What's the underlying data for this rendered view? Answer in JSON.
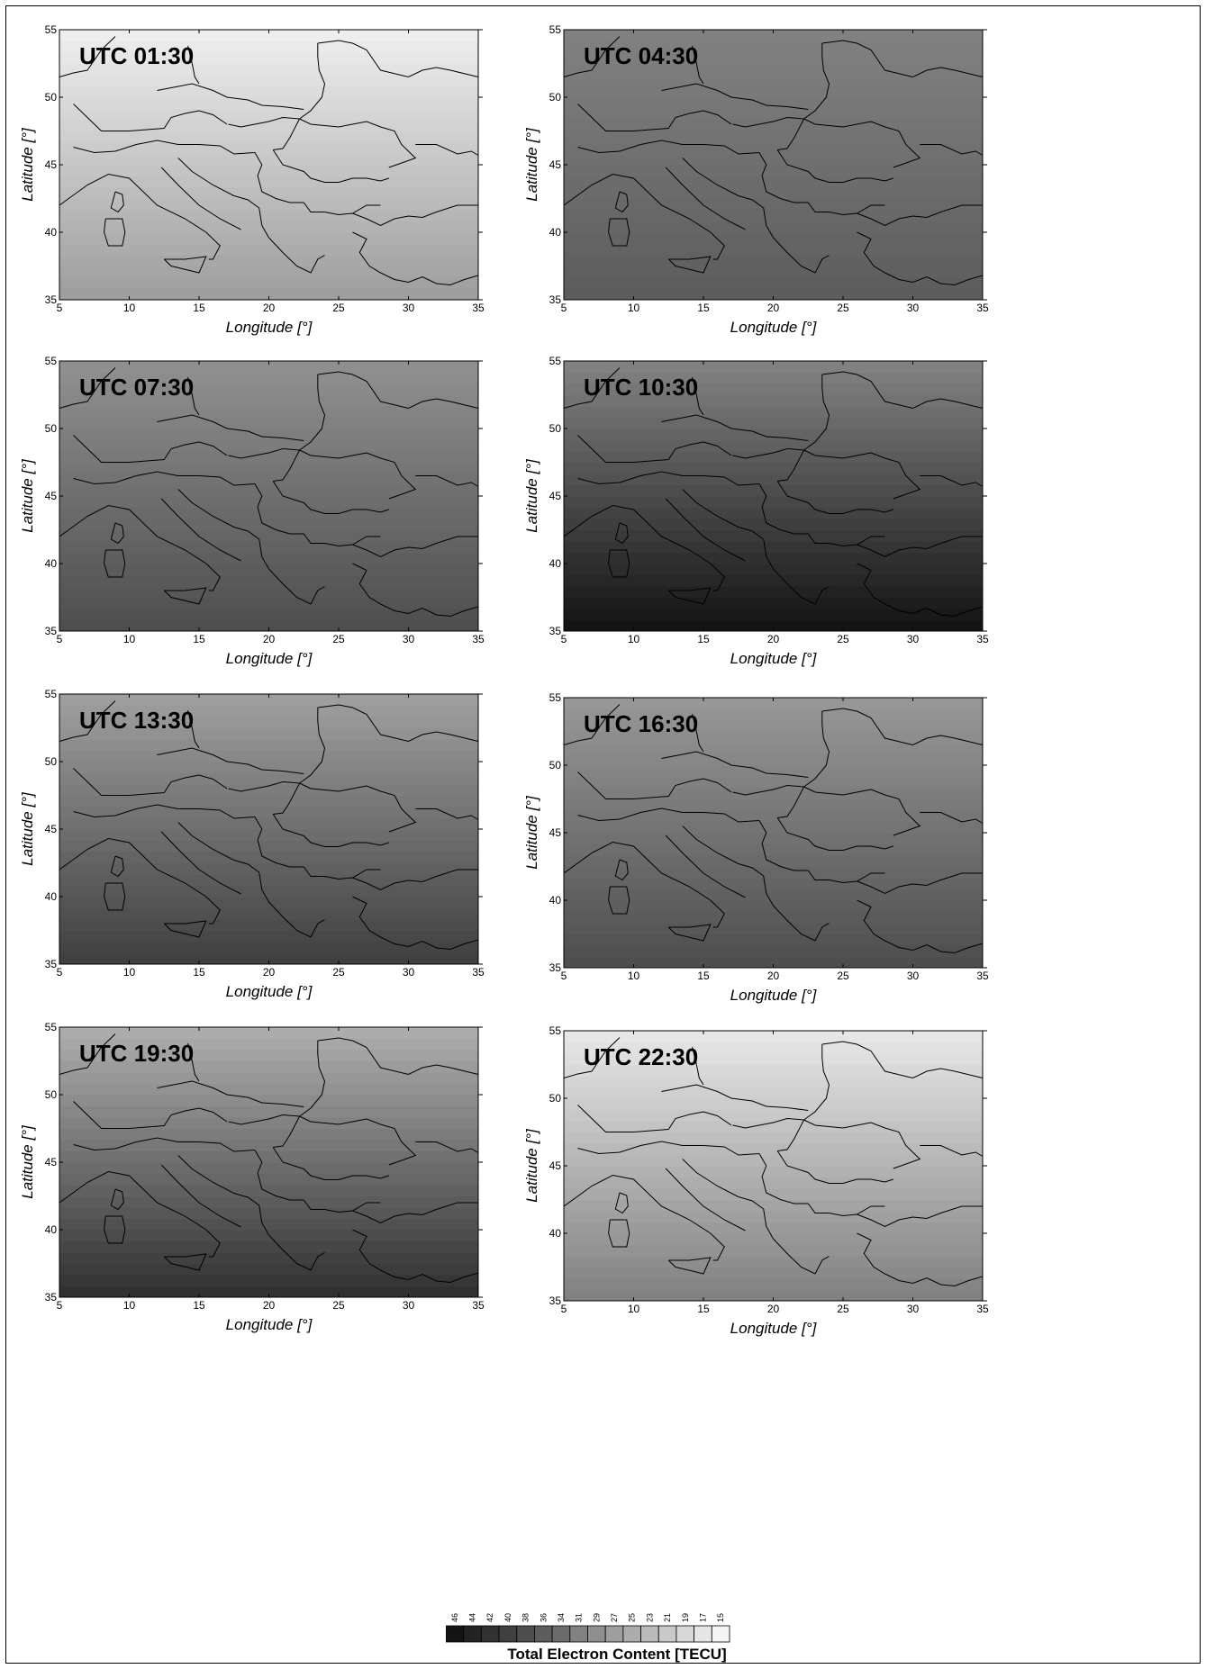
{
  "chart_data": [
    {
      "type": "heatmap",
      "time_label": "UTC 01:30",
      "xlabel": "Longitude [°]",
      "ylabel": "Latitude [°]",
      "xlim": [
        5,
        35
      ],
      "ylim": [
        35,
        55
      ],
      "x_ticks": [
        5,
        10,
        15,
        20,
        25,
        30,
        35
      ],
      "y_ticks": [
        35,
        40,
        45,
        50,
        55
      ],
      "tec_estimate": {
        "north": 16,
        "south": 27,
        "trend": "decreasing northward"
      }
    },
    {
      "type": "heatmap",
      "time_label": "UTC 04:30",
      "xlabel": "Longitude [°]",
      "ylabel": "Latitude [°]",
      "xlim": [
        5,
        35
      ],
      "ylim": [
        35,
        55
      ],
      "x_ticks": [
        5,
        10,
        15,
        20,
        25,
        30,
        35
      ],
      "y_ticks": [
        35,
        40,
        45,
        50,
        55
      ],
      "tec_estimate": {
        "north": 31,
        "south": 36,
        "trend": "increasing eastward"
      }
    },
    {
      "type": "heatmap",
      "time_label": "UTC 07:30",
      "xlabel": "Longitude [°]",
      "ylabel": "Latitude [°]",
      "xlim": [
        5,
        35
      ],
      "ylim": [
        35,
        55
      ],
      "x_ticks": [
        5,
        10,
        15,
        20,
        25,
        30,
        35
      ],
      "y_ticks": [
        35,
        40,
        45,
        50,
        55
      ],
      "tec_estimate": {
        "north": 29,
        "south": 38,
        "trend": "increasing southeastward"
      }
    },
    {
      "type": "heatmap",
      "time_label": "UTC 10:30",
      "xlabel": "Longitude [°]",
      "ylabel": "Latitude [°]",
      "xlim": [
        5,
        35
      ],
      "ylim": [
        35,
        55
      ],
      "x_ticks": [
        5,
        10,
        15,
        20,
        25,
        30,
        35
      ],
      "y_ticks": [
        35,
        40,
        45,
        50,
        55
      ],
      "tec_estimate": {
        "north": 31,
        "south": 46,
        "trend": "increasing southeastward"
      }
    },
    {
      "type": "heatmap",
      "time_label": "UTC 13:30",
      "xlabel": "Longitude [°]",
      "ylabel": "Latitude [°]",
      "xlim": [
        5,
        35
      ],
      "ylim": [
        35,
        55
      ],
      "x_ticks": [
        5,
        10,
        15,
        20,
        25,
        30,
        35
      ],
      "y_ticks": [
        35,
        40,
        45,
        50,
        55
      ],
      "tec_estimate": {
        "north": 27,
        "south": 40,
        "trend": "increasing southward"
      }
    },
    {
      "type": "heatmap",
      "time_label": "UTC 16:30",
      "xlabel": "Longitude [°]",
      "ylabel": "Latitude [°]",
      "xlim": [
        5,
        35
      ],
      "ylim": [
        35,
        55
      ],
      "x_ticks": [
        5,
        10,
        15,
        20,
        25,
        30,
        35
      ],
      "y_ticks": [
        35,
        40,
        45,
        50,
        55
      ],
      "tec_estimate": {
        "north": 28,
        "south": 38,
        "trend": "increasing southward"
      }
    },
    {
      "type": "heatmap",
      "time_label": "UTC 19:30",
      "xlabel": "Longitude [°]",
      "ylabel": "Latitude [°]",
      "xlim": [
        5,
        35
      ],
      "ylim": [
        35,
        55
      ],
      "x_ticks": [
        5,
        10,
        15,
        20,
        25,
        30,
        35
      ],
      "y_ticks": [
        35,
        40,
        45,
        50,
        55
      ],
      "tec_estimate": {
        "north": 25,
        "south": 42,
        "trend": "increasing southward"
      }
    },
    {
      "type": "heatmap",
      "time_label": "UTC 22:30",
      "xlabel": "Longitude [°]",
      "ylabel": "Latitude [°]",
      "xlim": [
        5,
        35
      ],
      "ylim": [
        35,
        55
      ],
      "x_ticks": [
        5,
        10,
        15,
        20,
        25,
        30,
        35
      ],
      "y_ticks": [
        35,
        40,
        45,
        50,
        55
      ],
      "tec_estimate": {
        "north": 17,
        "south": 31,
        "trend": "increasing southward"
      }
    }
  ],
  "colorbar": {
    "title": "Total Electron Content [TECU]",
    "labels": [
      "46",
      "44",
      "42",
      "40",
      "38",
      "36",
      "34",
      "31",
      "29",
      "27",
      "25",
      "23",
      "21",
      "19",
      "17",
      "15"
    ],
    "dark_color": "#000000",
    "light_color": "#ffffff"
  }
}
